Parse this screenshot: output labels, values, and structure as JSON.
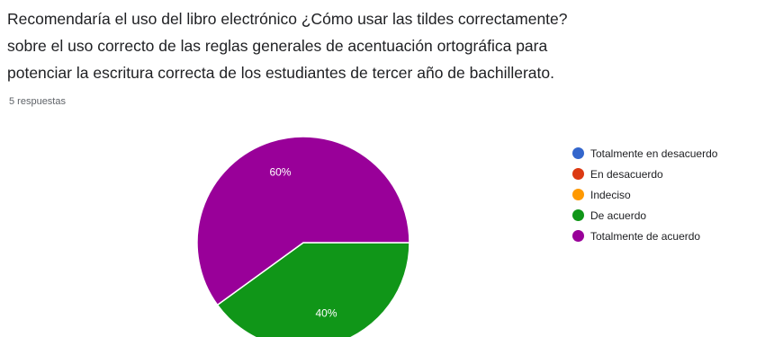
{
  "question": {
    "title_lines": [
      "Recomendaría el uso del libro electrónico ¿Cómo usar las tildes correctamente?",
      " sobre el uso correcto de las reglas generales de acentuación ortográfica para",
      "potenciar la escritura correcta de los estudiantes de tercer año de bachillerato."
    ],
    "response_count": "5 respuestas"
  },
  "chart_data": {
    "type": "pie",
    "categories": [
      "Totalmente en desacuerdo",
      "En desacuerdo",
      "Indeciso",
      "De acuerdo",
      "Totalmente de acuerdo"
    ],
    "values": [
      0,
      0,
      0,
      2,
      3
    ],
    "percent_labels": [
      "0%",
      "0%",
      "0%",
      "40%",
      "60%"
    ],
    "colors": [
      "#3366cc",
      "#dc3912",
      "#ff9900",
      "#109618",
      "#990099"
    ],
    "title": "",
    "legend_position": "right"
  }
}
